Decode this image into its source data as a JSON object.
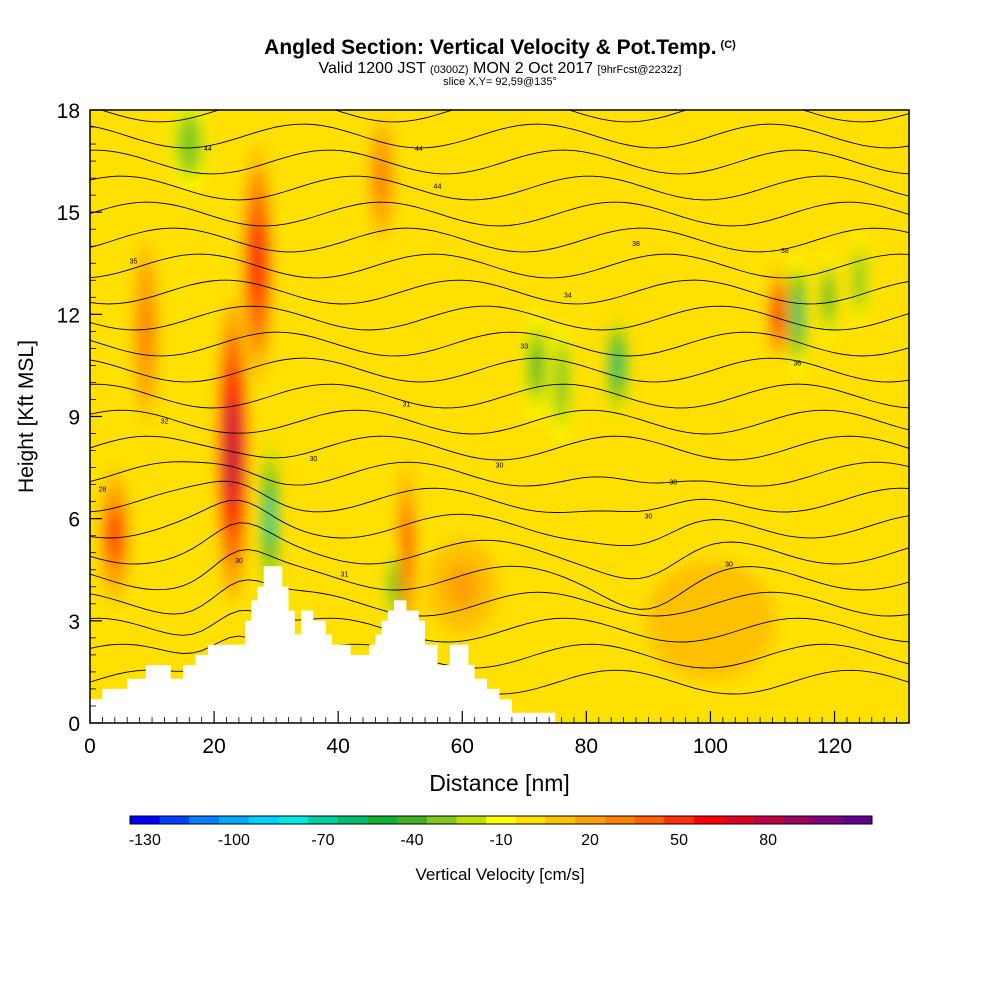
{
  "chart_data": {
    "type": "heatmap",
    "title": "Angled Section: Vertical Velocity & Pot.Temp.",
    "title_unit": "(C)",
    "subtitle_parts": [
      "Valid 1200 JST",
      "(0300Z)",
      "MON 2 Oct 2017",
      "[9hrFcst@2232z]"
    ],
    "subtitle2": "slice X,Y= 92,59@135°",
    "xlabel": "Distance [nm]",
    "ylabel": "Height [Kft MSL]",
    "xlim": [
      0,
      132
    ],
    "ylim": [
      0,
      18
    ],
    "x_ticks": [
      "0",
      "20",
      "40",
      "60",
      "80",
      "100",
      "120"
    ],
    "y_ticks": [
      "0",
      "3",
      "6",
      "9",
      "12",
      "15",
      "18"
    ],
    "colorbar": {
      "label": "Vertical Velocity [cm/s]",
      "ticks": [
        "-130",
        "-100",
        "-70",
        "-40",
        "-10",
        "20",
        "50",
        "80"
      ],
      "colors": [
        "#0000ff",
        "#0040ff",
        "#0080ff",
        "#00a8ff",
        "#00d0ff",
        "#00e8e0",
        "#00d0a0",
        "#00c070",
        "#10b030",
        "#40b020",
        "#80c820",
        "#c0e000",
        "#ffff00",
        "#ffe000",
        "#ffc000",
        "#ffa000",
        "#ff8000",
        "#ff6000",
        "#ff3000",
        "#ff0000",
        "#e00020",
        "#c00040",
        "#a00060",
        "#800080",
        "#600090"
      ]
    },
    "terrain_kft": [
      [
        0,
        0.7
      ],
      [
        2,
        0.7
      ],
      [
        2,
        1
      ],
      [
        6,
        1
      ],
      [
        6,
        1.3
      ],
      [
        9,
        1.3
      ],
      [
        9,
        1.7
      ],
      [
        13,
        1.7
      ],
      [
        13,
        1.3
      ],
      [
        15,
        1.3
      ],
      [
        15,
        1.7
      ],
      [
        17,
        1.7
      ],
      [
        17,
        2
      ],
      [
        19,
        2
      ],
      [
        19,
        2.3
      ],
      [
        25,
        2.3
      ],
      [
        25,
        3
      ],
      [
        26,
        3
      ],
      [
        26,
        3.6
      ],
      [
        27,
        3.6
      ],
      [
        27,
        4
      ],
      [
        28,
        4
      ],
      [
        28,
        4.6
      ],
      [
        31,
        4.6
      ],
      [
        31,
        4
      ],
      [
        32,
        4
      ],
      [
        32,
        3.3
      ],
      [
        33,
        3.3
      ],
      [
        33,
        2.6
      ],
      [
        34,
        2.6
      ],
      [
        34,
        3.3
      ],
      [
        36,
        3.3
      ],
      [
        36,
        3
      ],
      [
        38,
        3
      ],
      [
        38,
        2.6
      ],
      [
        39,
        2.6
      ],
      [
        39,
        2.3
      ],
      [
        42,
        2.3
      ],
      [
        42,
        2
      ],
      [
        45,
        2
      ],
      [
        45,
        2.3
      ],
      [
        46,
        2.3
      ],
      [
        46,
        2.6
      ],
      [
        47,
        2.6
      ],
      [
        47,
        3
      ],
      [
        48,
        3
      ],
      [
        48,
        3.3
      ],
      [
        49,
        3.3
      ],
      [
        49,
        3.6
      ],
      [
        51,
        3.6
      ],
      [
        51,
        3.3
      ],
      [
        53,
        3.3
      ],
      [
        53,
        3
      ],
      [
        54,
        3
      ],
      [
        54,
        2.3
      ],
      [
        56,
        2.3
      ],
      [
        56,
        1.7
      ],
      [
        58,
        1.7
      ],
      [
        58,
        2.3
      ],
      [
        61,
        2.3
      ],
      [
        61,
        1.7
      ],
      [
        62,
        1.7
      ],
      [
        62,
        1.3
      ],
      [
        64,
        1.3
      ],
      [
        64,
        1
      ],
      [
        66,
        1
      ],
      [
        66,
        0.7
      ],
      [
        68,
        0.7
      ],
      [
        68,
        0.3
      ],
      [
        75,
        0.3
      ],
      [
        75,
        0
      ],
      [
        0,
        0
      ]
    ],
    "updrafts": [
      {
        "x": 4,
        "y": 5.5,
        "sx": 2.5,
        "sy": 2.2,
        "w": 45
      },
      {
        "x": 9,
        "y": 11.5,
        "sx": 2,
        "sy": 3,
        "w": 30
      },
      {
        "x": 23,
        "y": 8,
        "sx": 2.5,
        "sy": 5,
        "w": 75
      },
      {
        "x": 27,
        "y": 13.5,
        "sx": 2.5,
        "sy": 4,
        "w": 55
      },
      {
        "x": 47,
        "y": 16,
        "sx": 2,
        "sy": 2,
        "w": 30
      },
      {
        "x": 51,
        "y": 5,
        "sx": 1.5,
        "sy": 3,
        "w": 35
      },
      {
        "x": 111,
        "y": 12,
        "sx": 1.5,
        "sy": 1.5,
        "w": 55
      },
      {
        "x": 60,
        "y": 4,
        "sx": 8,
        "sy": 2,
        "w": 15
      },
      {
        "x": 100,
        "y": 3,
        "sx": 15,
        "sy": 2.5,
        "w": 12
      }
    ],
    "downdrafts": [
      {
        "x": 29,
        "y": 6,
        "sx": 1.3,
        "sy": 2.5,
        "w": -70
      },
      {
        "x": 16,
        "y": 17,
        "sx": 3,
        "sy": 1.5,
        "w": -35
      },
      {
        "x": 72,
        "y": 10.5,
        "sx": 1.8,
        "sy": 1.8,
        "w": -40
      },
      {
        "x": 76,
        "y": 10,
        "sx": 1.5,
        "sy": 2,
        "w": -35
      },
      {
        "x": 85,
        "y": 10.5,
        "sx": 1.5,
        "sy": 1.5,
        "w": -65
      },
      {
        "x": 114,
        "y": 12,
        "sx": 1.5,
        "sy": 2,
        "w": -60
      },
      {
        "x": 119,
        "y": 12.5,
        "sx": 1.3,
        "sy": 1.5,
        "w": -40
      },
      {
        "x": 124,
        "y": 13,
        "sx": 1.2,
        "sy": 1.5,
        "w": -35
      },
      {
        "x": 49,
        "y": 4,
        "sx": 1,
        "sy": 1.5,
        "w": -40
      }
    ],
    "theta_levels": [
      22,
      44
    ],
    "contour_labels": [
      {
        "x": 2,
        "y": 6.8,
        "text": "28"
      },
      {
        "x": 7,
        "y": 13.5,
        "text": "35"
      },
      {
        "x": 12,
        "y": 8.8,
        "text": "32"
      },
      {
        "x": 19,
        "y": 16.8,
        "text": "44"
      },
      {
        "x": 24,
        "y": 4.7,
        "text": "30"
      },
      {
        "x": 36,
        "y": 7.7,
        "text": "30"
      },
      {
        "x": 41,
        "y": 4.3,
        "text": "31"
      },
      {
        "x": 51,
        "y": 9.3,
        "text": "31"
      },
      {
        "x": 53,
        "y": 16.8,
        "text": "44"
      },
      {
        "x": 56,
        "y": 15.7,
        "text": "44"
      },
      {
        "x": 66,
        "y": 7.5,
        "text": "30"
      },
      {
        "x": 70,
        "y": 11,
        "text": "33"
      },
      {
        "x": 77,
        "y": 12.5,
        "text": "34"
      },
      {
        "x": 88,
        "y": 14,
        "text": "38"
      },
      {
        "x": 90,
        "y": 6,
        "text": "30"
      },
      {
        "x": 94,
        "y": 7,
        "text": "30"
      },
      {
        "x": 103,
        "y": 4.6,
        "text": "30"
      },
      {
        "x": 112,
        "y": 13.8,
        "text": "38"
      },
      {
        "x": 114,
        "y": 10.5,
        "text": "36"
      }
    ]
  }
}
